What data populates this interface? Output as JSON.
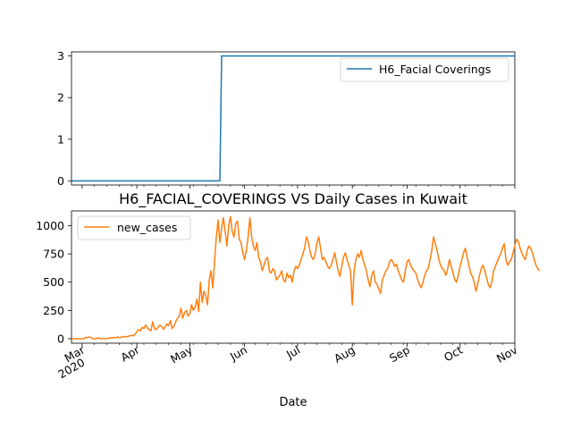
{
  "chart_data": [
    {
      "type": "line",
      "title": "",
      "xlabel": "",
      "ylabel": "",
      "x_range": [
        "2020-02-24",
        "2020-11-01"
      ],
      "ylim": [
        -0.1,
        3.1
      ],
      "y_ticks": [
        0,
        1,
        2,
        3
      ],
      "grid": false,
      "legend_placement": "upper right",
      "series": [
        {
          "name": "H6_Facial Coverings",
          "color": "#1f77b4",
          "points": [
            {
              "x": "2020-02-24",
              "y": 0
            },
            {
              "x": "2020-05-18",
              "y": 0
            },
            {
              "x": "2020-05-19",
              "y": 3
            },
            {
              "x": "2020-11-01",
              "y": 3
            }
          ]
        }
      ]
    },
    {
      "type": "line",
      "title": "H6_FACIAL_COVERINGS VS Daily Cases in Kuwait",
      "xlabel": "Date",
      "ylabel": "",
      "x_range": [
        "2020-02-24",
        "2020-11-01"
      ],
      "ylim": [
        -40,
        1130
      ],
      "y_ticks": [
        0,
        250,
        500,
        750,
        1000
      ],
      "x_ticks": [
        {
          "date": "2020-03-01",
          "label": "Mar",
          "sublabel": "2020"
        },
        {
          "date": "2020-04-01",
          "label": "Apr"
        },
        {
          "date": "2020-05-01",
          "label": "May"
        },
        {
          "date": "2020-06-01",
          "label": "Jun"
        },
        {
          "date": "2020-07-01",
          "label": "Jul"
        },
        {
          "date": "2020-08-01",
          "label": "Aug"
        },
        {
          "date": "2020-09-01",
          "label": "Sep"
        },
        {
          "date": "2020-10-01",
          "label": "Oct"
        },
        {
          "date": "2020-11-01",
          "label": "Nov"
        }
      ],
      "grid": false,
      "legend_placement": "upper left",
      "series": [
        {
          "name": "new_cases",
          "color": "#ff7f0e",
          "start_date": "2020-02-24",
          "values": [
            0,
            0,
            0,
            0,
            0,
            0,
            0,
            0,
            10,
            10,
            15,
            10,
            0,
            0,
            0,
            8,
            0,
            0,
            2,
            0,
            0,
            2,
            10,
            4,
            12,
            8,
            15,
            10,
            10,
            20,
            15,
            18,
            20,
            25,
            30,
            25,
            40,
            60,
            80,
            70,
            100,
            90,
            120,
            95,
            80,
            70,
            150,
            90,
            80,
            100,
            120,
            110,
            85,
            100,
            130,
            115,
            160,
            90,
            110,
            150,
            180,
            200,
            270,
            180,
            230,
            250,
            200,
            220,
            300,
            250,
            280,
            350,
            240,
            500,
            320,
            420,
            380,
            300,
            520,
            600,
            450,
            680,
            900,
            1050,
            850,
            980,
            1070,
            950,
            820,
            1000,
            1080,
            950,
            900,
            1020,
            1040,
            880,
            850,
            760,
            700,
            780,
            900,
            1070,
            900,
            820,
            780,
            850,
            720,
            680,
            600,
            650,
            700,
            720,
            600,
            580,
            620,
            600,
            520,
            540,
            560,
            600,
            520,
            500,
            580,
            540,
            560,
            500,
            600,
            640,
            620,
            650,
            700,
            750,
            800,
            900,
            860,
            780,
            720,
            700,
            750,
            850,
            900,
            800,
            700,
            720,
            680,
            640,
            620,
            650,
            700,
            760,
            680,
            600,
            550,
            640,
            720,
            760,
            700,
            650,
            600,
            300,
            600,
            700,
            750,
            720,
            780,
            700,
            650,
            600,
            520,
            460,
            560,
            600,
            500,
            480,
            440,
            400,
            520,
            560,
            600,
            620,
            680,
            700,
            680,
            640,
            660,
            600,
            560,
            520,
            500,
            600,
            680,
            700,
            650,
            620,
            600,
            580,
            520,
            480,
            450,
            500,
            560,
            600,
            620,
            700,
            780,
            900,
            840,
            780,
            700,
            650,
            620,
            600,
            560,
            620,
            700,
            640,
            580,
            520,
            500,
            560,
            640,
            700,
            760,
            800,
            720,
            650,
            580,
            550,
            500,
            420,
            480,
            560,
            620,
            650,
            600,
            540,
            480,
            450,
            500,
            600,
            640,
            680,
            720,
            750,
            800,
            840,
            700,
            650,
            680,
            700,
            760,
            820,
            880,
            860,
            800,
            760,
            720,
            700,
            780,
            820,
            800,
            760,
            700,
            650,
            620,
            600
          ]
        }
      ]
    }
  ]
}
